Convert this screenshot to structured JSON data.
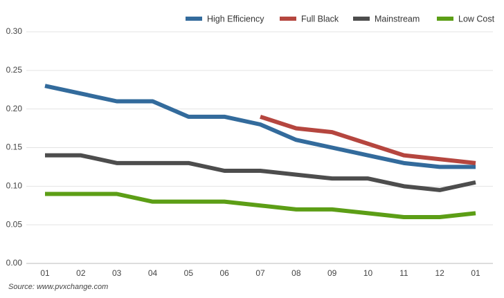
{
  "chart_data": {
    "type": "line",
    "categories": [
      "01",
      "02",
      "03",
      "04",
      "05",
      "06",
      "07",
      "08",
      "09",
      "10",
      "11",
      "12",
      "01"
    ],
    "series": [
      {
        "name": "High Efficiency",
        "color": "#336b9c",
        "values": [
          0.23,
          0.22,
          0.21,
          0.21,
          0.19,
          0.19,
          0.18,
          0.16,
          0.15,
          0.14,
          0.13,
          0.125,
          0.125
        ]
      },
      {
        "name": "Full Black",
        "color": "#b5463f",
        "values": [
          null,
          null,
          null,
          null,
          null,
          null,
          0.19,
          0.175,
          0.17,
          0.155,
          0.14,
          0.135,
          0.13
        ]
      },
      {
        "name": "Mainstream",
        "color": "#4d4d4d",
        "values": [
          0.14,
          0.14,
          0.13,
          0.13,
          0.13,
          0.12,
          0.12,
          0.115,
          0.11,
          0.11,
          0.1,
          0.095,
          0.105
        ]
      },
      {
        "name": "Low Cost",
        "color": "#5c9e16",
        "values": [
          0.09,
          0.09,
          0.09,
          0.08,
          0.08,
          0.08,
          0.075,
          0.07,
          0.07,
          0.065,
          0.06,
          0.06,
          0.065
        ]
      }
    ],
    "ylim": [
      0,
      0.3
    ],
    "yticks": [
      {
        "value": 0,
        "label": "0.00"
      },
      0.05,
      {
        "value": 0.1,
        "label": "0.10"
      },
      0.15,
      {
        "value": 0.2,
        "label": "0.20"
      },
      0.25,
      {
        "value": 0.3,
        "label": "0.30"
      }
    ],
    "grid": true,
    "legend": "top-right",
    "source": "Source: www.pvxchange.com"
  }
}
